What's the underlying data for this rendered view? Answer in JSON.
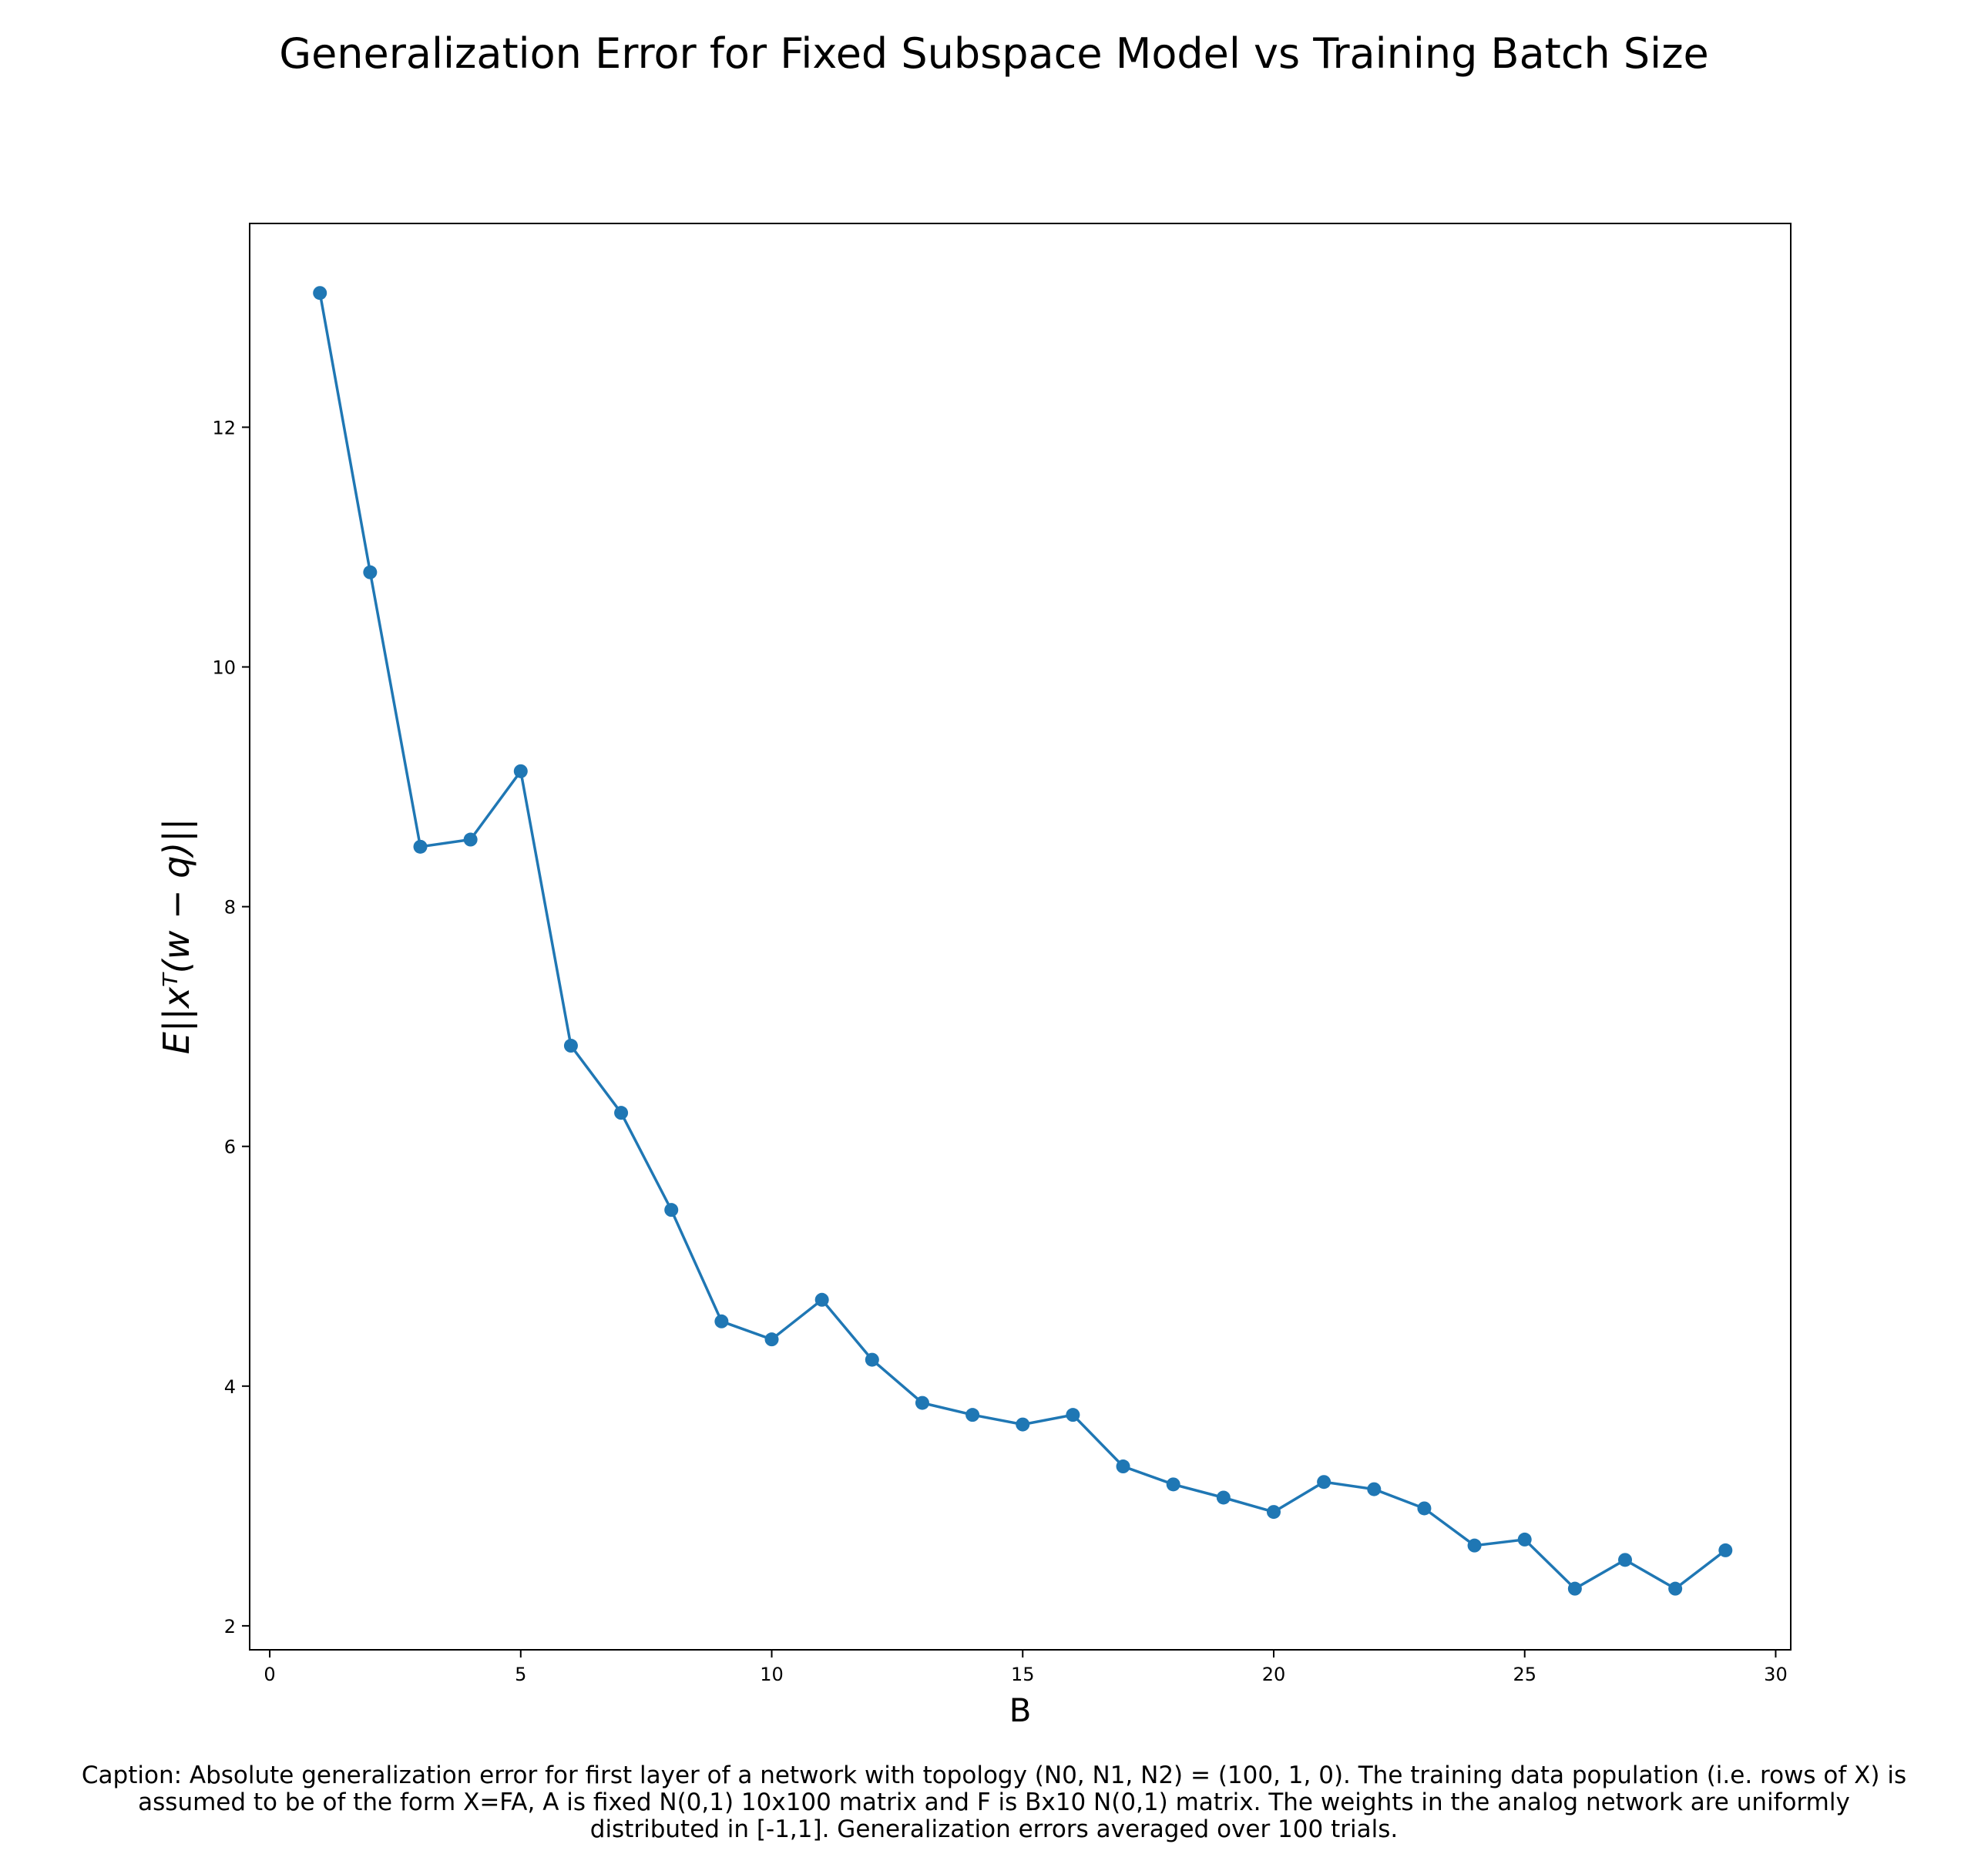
{
  "chart_data": {
    "type": "line",
    "title": "Generalization Error for Fixed Subspace Model vs Training Batch Size",
    "xlabel": "B",
    "ylabel": "E||xᵀ(w − q)||",
    "xlim": [
      -0.4,
      30.3
    ],
    "ylim": [
      1.8,
      13.7
    ],
    "xticks": [
      0,
      5,
      10,
      15,
      20,
      25,
      30
    ],
    "yticks": [
      2,
      4,
      6,
      8,
      10,
      12
    ],
    "grid": false,
    "legend": "none",
    "marker": "circle",
    "series": [
      {
        "color": "#1f77b4",
        "x": [
          1,
          2,
          3,
          4,
          5,
          6,
          7,
          8,
          9,
          10,
          11,
          12,
          13,
          14,
          15,
          16,
          17,
          18,
          19,
          20,
          21,
          22,
          23,
          24,
          25,
          26,
          27,
          28,
          29
        ],
        "y": [
          13.12,
          10.79,
          8.5,
          8.56,
          9.13,
          6.84,
          6.28,
          5.47,
          4.54,
          4.39,
          4.72,
          4.22,
          3.86,
          3.76,
          3.68,
          3.76,
          3.33,
          3.18,
          3.07,
          2.95,
          3.2,
          3.14,
          2.98,
          2.67,
          2.72,
          2.31,
          2.55,
          2.31,
          2.63
        ]
      }
    ]
  },
  "caption": {
    "lines": [
      "Caption: Absolute generalization error for first layer of a network with topology (N0, N1, N2) = (100, 1, 0). The training data population (i.e. rows of X) is",
      "assumed to be of the form X=FA, A is fixed N(0,1) 10x100 matrix and F is Bx10 N(0,1) matrix. The weights in the analog network are uniformly",
      "distributed in [-1,1]. Generalization errors averaged over 100 trials."
    ]
  }
}
